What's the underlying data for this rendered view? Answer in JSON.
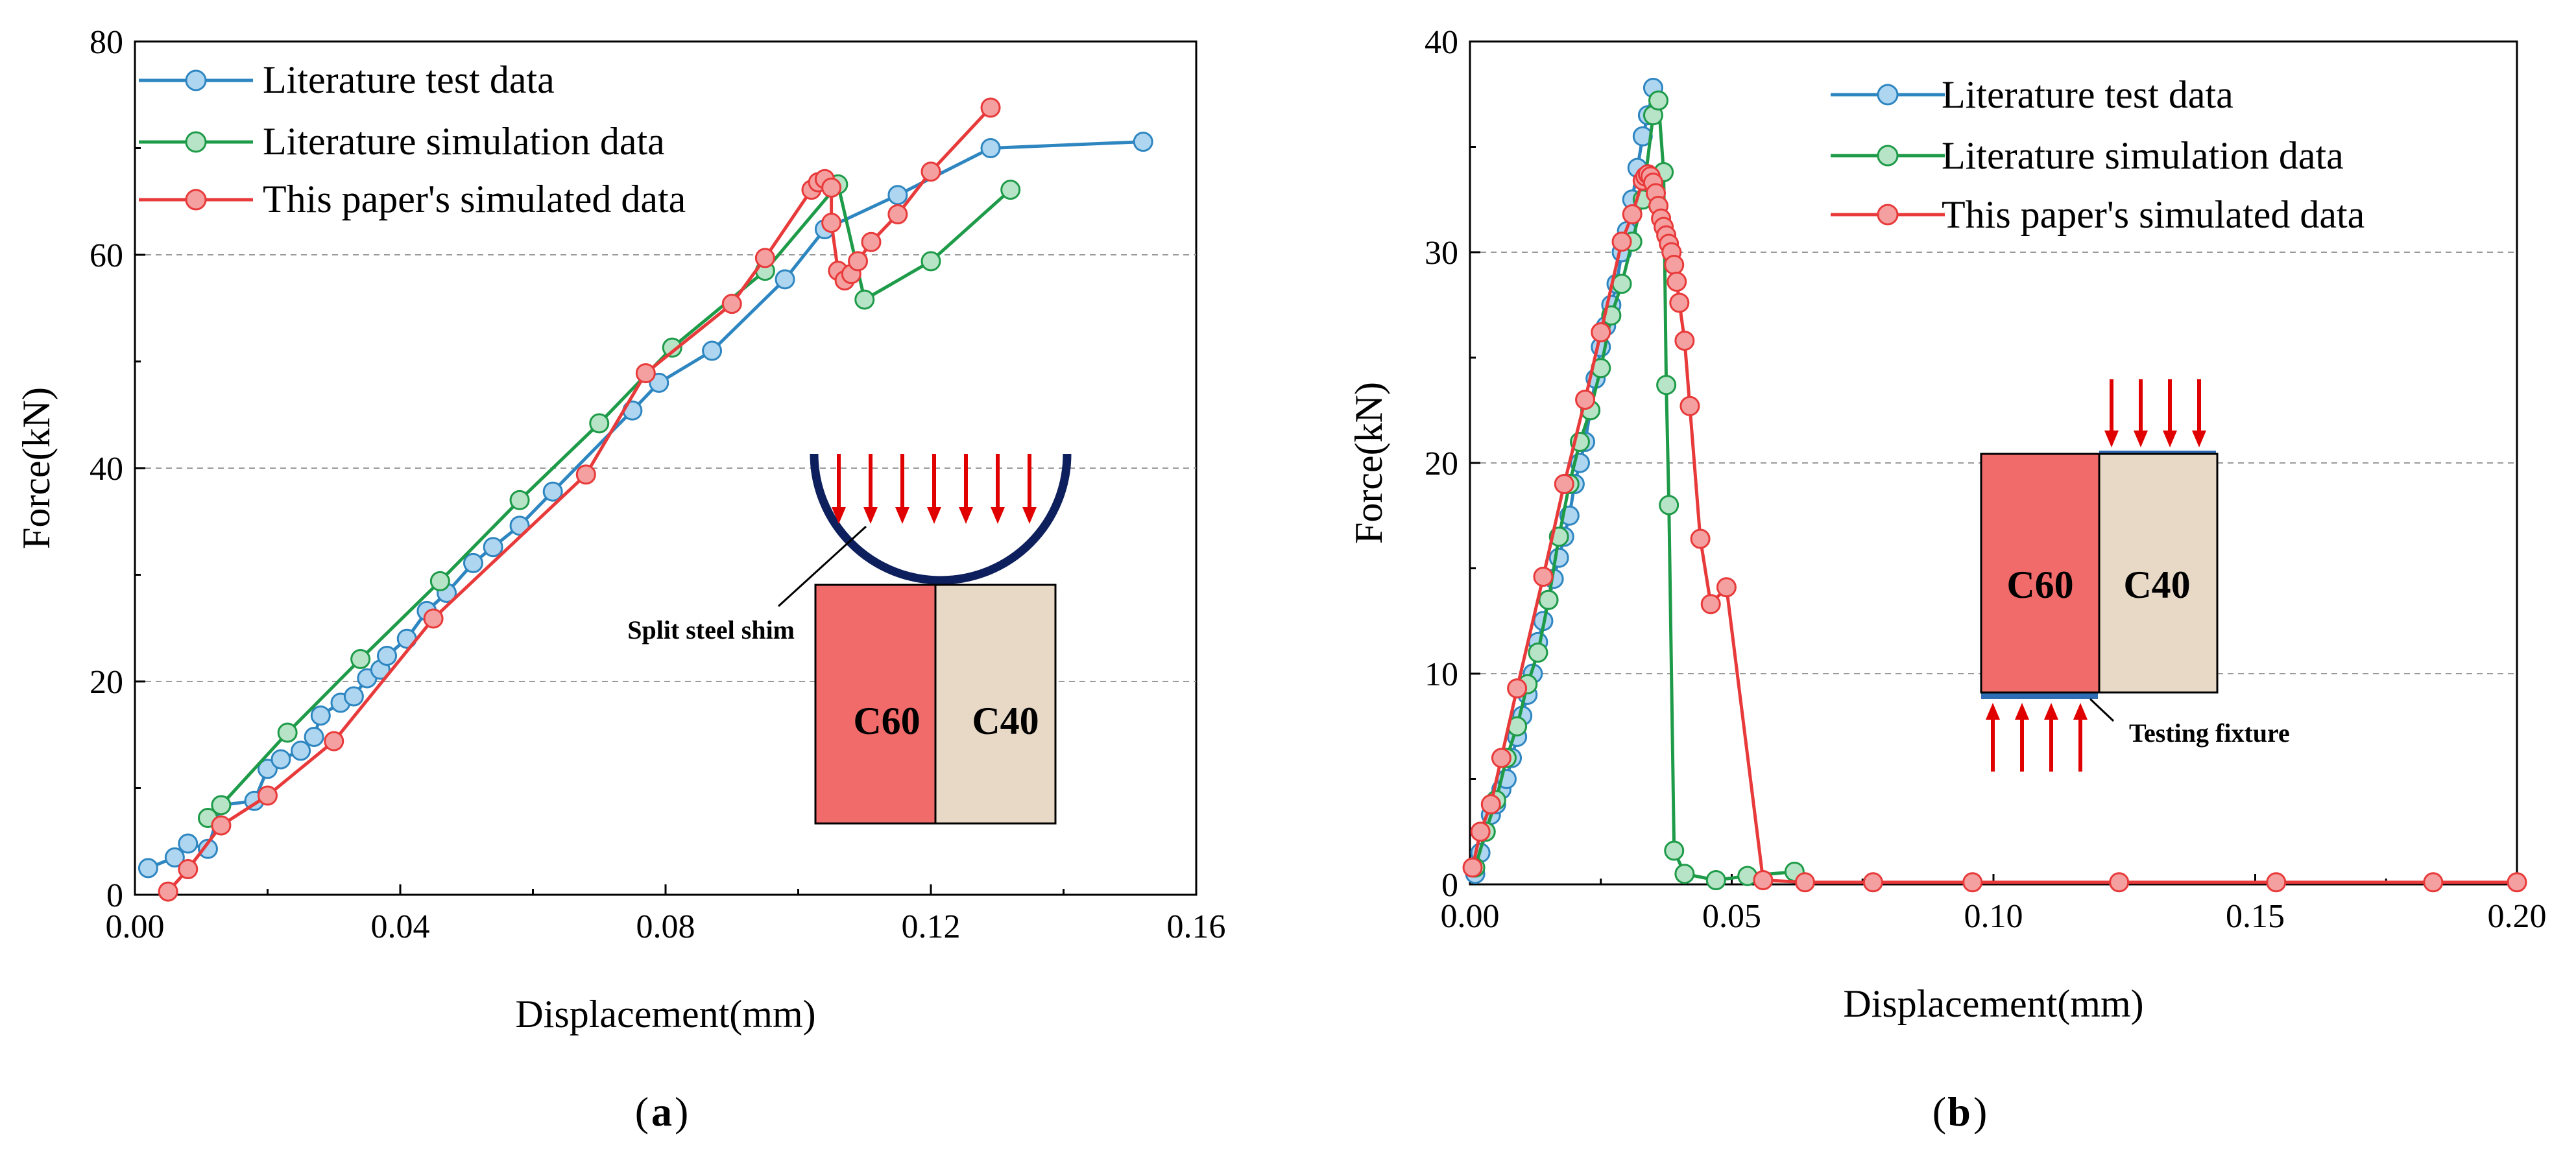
{
  "colors": {
    "test": "#2E86C1",
    "test_fill": "#AED6F1",
    "sim": "#1E9B48",
    "sim_fill": "#B7E4C7",
    "paper": "#E83A3A",
    "paper_fill": "#F5A0A0",
    "c60": "#F26B6B",
    "c40": "#E8D9C7",
    "shim": "#0D1F5C",
    "arrow": "#E00000",
    "fixture": "#2E6DB4"
  },
  "chart_data": [
    {
      "id": "a",
      "type": "line",
      "panel_label": "a",
      "xlabel": "Displacement(mm)",
      "ylabel": "Force(kN)",
      "xlim": [
        0,
        0.16
      ],
      "ylim": [
        0,
        80
      ],
      "xticks": [
        0,
        0.04,
        0.08,
        0.12,
        0.16
      ],
      "xtick_labels": [
        "0.00",
        "0.04",
        "0.08",
        "0.12",
        "0.16"
      ],
      "yticks": [
        0,
        20,
        40,
        60,
        80
      ],
      "ytick_labels": [
        "0",
        "20",
        "40",
        "60",
        "80"
      ],
      "grid": "horizontal dashed",
      "legend_position": "top-left",
      "series": [
        {
          "name": "Literature test data",
          "color_key": "test",
          "x": [
            0.002,
            0.006,
            0.008,
            0.011,
            0.013,
            0.018,
            0.02,
            0.022,
            0.025,
            0.027,
            0.028,
            0.031,
            0.033,
            0.035,
            0.037,
            0.038,
            0.041,
            0.044,
            0.047,
            0.051,
            0.054,
            0.058,
            0.063,
            0.075,
            0.079,
            0.087,
            0.098,
            0.104,
            0.115,
            0.129,
            0.152
          ],
          "y": [
            2.5,
            3.5,
            4.8,
            4.3,
            8.4,
            8.8,
            11.8,
            12.7,
            13.5,
            14.8,
            16.8,
            18,
            18.6,
            20.3,
            21.1,
            22.4,
            24,
            26.6,
            28.3,
            31.1,
            32.6,
            34.6,
            37.8,
            45.4,
            48,
            51,
            57.7,
            62.4,
            65.6,
            70,
            70.6
          ]
        },
        {
          "name": "Literature simulation data",
          "color_key": "sim",
          "x": [
            0.011,
            0.013,
            0.023,
            0.034,
            0.046,
            0.058,
            0.07,
            0.081,
            0.095,
            0.106,
            0.11,
            0.12,
            0.132
          ],
          "y": [
            7.2,
            8.4,
            15.2,
            22.1,
            29.4,
            37,
            44.2,
            51.3,
            58.5,
            66.6,
            55.8,
            59.4,
            66.1
          ]
        },
        {
          "name": "This paper's simulated data",
          "color_key": "paper",
          "x": [
            0.005,
            0.008,
            0.013,
            0.02,
            0.03,
            0.045,
            0.068,
            0.077,
            0.09,
            0.095,
            0.102,
            0.103,
            0.104,
            0.105,
            0.105,
            0.106,
            0.107,
            0.108,
            0.109,
            0.111,
            0.115,
            0.12,
            0.129
          ],
          "y": [
            0.3,
            2.4,
            6.5,
            9.3,
            14.4,
            25.9,
            39.4,
            48.9,
            55.4,
            59.7,
            66.1,
            66.8,
            67.1,
            66.3,
            63,
            58.5,
            57.6,
            58.2,
            59.4,
            61.2,
            63.8,
            67.8,
            73.8
          ]
        }
      ],
      "inset": {
        "label_left": "C60",
        "label_right": "C40",
        "annotation": "Split steel shim"
      }
    },
    {
      "id": "b",
      "type": "line",
      "panel_label": "b",
      "xlabel": "Displacement(mm)",
      "ylabel": "Force(kN)",
      "xlim": [
        0,
        0.2
      ],
      "ylim": [
        0,
        40
      ],
      "xticks": [
        0,
        0.05,
        0.1,
        0.15,
        0.2
      ],
      "xtick_labels": [
        "0.00",
        "0.05",
        "0.10",
        "0.15",
        "0.20"
      ],
      "yticks": [
        0,
        10,
        20,
        30,
        40
      ],
      "ytick_labels": [
        "0",
        "10",
        "20",
        "30",
        "40"
      ],
      "grid": "horizontal dashed",
      "legend_position": "top-right",
      "series": [
        {
          "name": "Literature test data",
          "color_key": "test",
          "x": [
            0.001,
            0.002,
            0.003,
            0.004,
            0.005,
            0.006,
            0.007,
            0.008,
            0.009,
            0.01,
            0.011,
            0.012,
            0.013,
            0.014,
            0.015,
            0.016,
            0.017,
            0.018,
            0.019,
            0.02,
            0.021,
            0.022,
            0.023,
            0.024,
            0.025,
            0.026,
            0.027,
            0.028,
            0.029,
            0.03,
            0.031,
            0.032,
            0.033,
            0.034,
            0.035
          ],
          "y": [
            0.5,
            1.5,
            2.5,
            3.3,
            3.8,
            4.5,
            5,
            6,
            7,
            8,
            9,
            10,
            11.5,
            12.5,
            13.5,
            14.5,
            15.5,
            16.5,
            17.5,
            19,
            20,
            21,
            22.5,
            24,
            25.5,
            26.5,
            27.5,
            28.5,
            30,
            31,
            32.5,
            34,
            35.5,
            36.5,
            37.8
          ]
        },
        {
          "name": "Literature simulation data",
          "color_key": "sim",
          "x": [
            0.001,
            0.003,
            0.005,
            0.007,
            0.009,
            0.011,
            0.013,
            0.015,
            0.017,
            0.019,
            0.021,
            0.023,
            0.025,
            0.027,
            0.029,
            0.031,
            0.033,
            0.035,
            0.036,
            0.037,
            0.0375,
            0.038,
            0.039,
            0.041,
            0.047,
            0.053,
            0.062
          ],
          "y": [
            0.8,
            2.5,
            4,
            6,
            7.5,
            9.5,
            11,
            13.5,
            16.5,
            19,
            21,
            22.5,
            24.5,
            27,
            28.5,
            30.5,
            32.5,
            36.5,
            37.2,
            33.8,
            23.7,
            18,
            1.6,
            0.5,
            0.2,
            0.4,
            0.6
          ]
        },
        {
          "name": "This paper's simulated data",
          "color_key": "paper",
          "x": [
            0.0005,
            0.002,
            0.004,
            0.006,
            0.009,
            0.014,
            0.018,
            0.022,
            0.025,
            0.029,
            0.031,
            0.033,
            0.0335,
            0.034,
            0.0345,
            0.035,
            0.0355,
            0.036,
            0.0365,
            0.037,
            0.0375,
            0.038,
            0.0385,
            0.039,
            0.0395,
            0.04,
            0.041,
            0.042,
            0.044,
            0.046,
            0.049,
            0.056,
            0.064,
            0.077,
            0.096,
            0.124,
            0.154,
            0.184,
            0.2
          ],
          "y": [
            0.8,
            2.5,
            3.8,
            6,
            9.3,
            14.6,
            19,
            23,
            26.2,
            30.5,
            31.8,
            33.4,
            33.6,
            33.7,
            33.6,
            33.3,
            32.8,
            32.2,
            31.6,
            31.2,
            30.8,
            30.4,
            30,
            29.4,
            28.6,
            27.6,
            25.8,
            22.7,
            16.4,
            13.3,
            14.1,
            0.2,
            0.1,
            0.1,
            0.1,
            0.1,
            0.1,
            0.1,
            0.1
          ]
        }
      ],
      "inset": {
        "label_left": "C60",
        "label_right": "C40",
        "annotation": "Testing fixture"
      }
    }
  ]
}
